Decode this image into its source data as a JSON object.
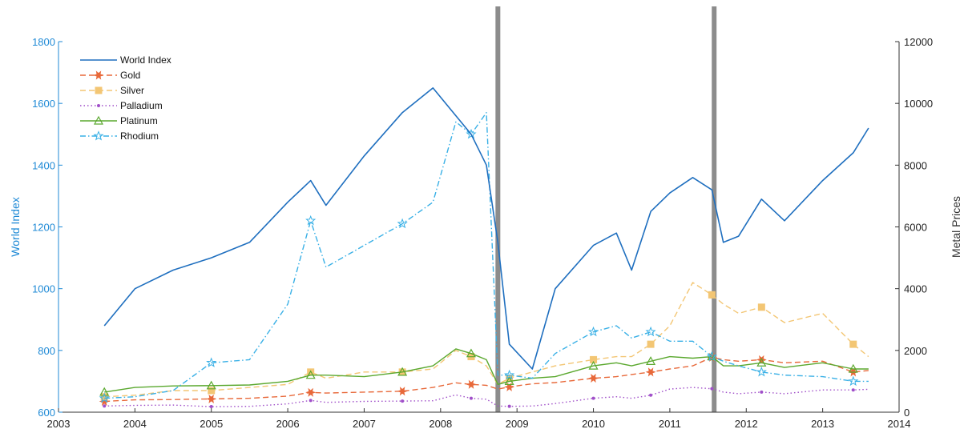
{
  "chart_data": {
    "type": "line",
    "title": "",
    "x": [
      2003.6,
      2004.0,
      2004.5,
      2005.0,
      2005.5,
      2006.0,
      2006.3,
      2006.5,
      2007.0,
      2007.5,
      2007.9,
      2008.2,
      2008.4,
      2008.6,
      2008.75,
      2008.9,
      2009.2,
      2009.5,
      2010.0,
      2010.3,
      2010.5,
      2010.75,
      2011.0,
      2011.3,
      2011.55,
      2011.7,
      2011.9,
      2012.2,
      2012.5,
      2013.0,
      2013.4,
      2013.6
    ],
    "xlim": [
      2003,
      2014
    ],
    "x_ticks": [
      "2003",
      "2004",
      "2005",
      "2006",
      "2007",
      "2008",
      "2009",
      "2010",
      "2011",
      "2012",
      "2013",
      "2014"
    ],
    "left_axis": {
      "label": "World Index",
      "ylim": [
        600,
        1800
      ],
      "ticks": [
        "600",
        "800",
        "1000",
        "1200",
        "1400",
        "1600",
        "1800"
      ],
      "color": "#1f8ad6"
    },
    "right_axis": {
      "label": "Metal Prices",
      "ylim": [
        0,
        12000
      ],
      "ticks": [
        "0",
        "2000",
        "4000",
        "6000",
        "8000",
        "10000",
        "12000"
      ],
      "color": "#333333"
    },
    "series": [
      {
        "name": "World Index",
        "axis": "left",
        "color": "#1f6fbf",
        "style": "solid",
        "marker": "none",
        "values": [
          880,
          1000,
          1060,
          1100,
          1150,
          1280,
          1350,
          1270,
          1430,
          1570,
          1650,
          1560,
          1500,
          1400,
          1150,
          820,
          740,
          1000,
          1140,
          1180,
          1060,
          1250,
          1310,
          1360,
          1320,
          1150,
          1170,
          1290,
          1220,
          1350,
          1440,
          1520
        ]
      },
      {
        "name": "Gold",
        "axis": "right",
        "color": "#e8693a",
        "style": "dashed",
        "marker": "star",
        "values": [
          350,
          400,
          410,
          430,
          450,
          520,
          640,
          620,
          650,
          680,
          800,
          950,
          900,
          870,
          750,
          820,
          920,
          960,
          1100,
          1150,
          1220,
          1300,
          1400,
          1500,
          1780,
          1700,
          1650,
          1700,
          1600,
          1650,
          1300,
          1350
        ]
      },
      {
        "name": "Silver",
        "axis": "right",
        "color": "#f3c674",
        "style": "dashed",
        "marker": "square",
        "values": [
          500,
          550,
          700,
          700,
          800,
          900,
          1300,
          1100,
          1300,
          1300,
          1400,
          2000,
          1800,
          1500,
          900,
          1100,
          1300,
          1500,
          1700,
          1800,
          1800,
          2200,
          2800,
          4200,
          3800,
          3500,
          3200,
          3400,
          2900,
          3200,
          2200,
          1800
        ]
      },
      {
        "name": "Palladium",
        "axis": "right",
        "color": "#a04fc9",
        "style": "dotted",
        "marker": "dot",
        "values": [
          200,
          220,
          230,
          180,
          190,
          270,
          380,
          320,
          350,
          360,
          370,
          560,
          450,
          420,
          200,
          190,
          200,
          280,
          450,
          500,
          450,
          550,
          750,
          800,
          760,
          650,
          600,
          650,
          600,
          720,
          720,
          740
        ]
      },
      {
        "name": "Platinum",
        "axis": "right",
        "color": "#5aa82e",
        "style": "solid",
        "marker": "triangle",
        "values": [
          650,
          800,
          850,
          860,
          880,
          1000,
          1200,
          1200,
          1150,
          1300,
          1500,
          2050,
          1900,
          1700,
          900,
          1000,
          1100,
          1150,
          1500,
          1600,
          1500,
          1650,
          1800,
          1750,
          1800,
          1500,
          1500,
          1600,
          1450,
          1600,
          1400,
          1400
        ]
      },
      {
        "name": "Rhodium",
        "axis": "right",
        "color": "#39b0e6",
        "style": "dashdot",
        "marker": "pentagram",
        "values": [
          450,
          500,
          700,
          1600,
          1700,
          3500,
          6200,
          4700,
          5400,
          6100,
          6800,
          9400,
          9000,
          9700,
          1200,
          1200,
          1100,
          1900,
          2600,
          2800,
          2400,
          2600,
          2300,
          2300,
          1800,
          1650,
          1500,
          1300,
          1200,
          1150,
          1000,
          1000
        ]
      }
    ],
    "vertical_markers": [
      2008.75,
      2011.58
    ],
    "legend_position": "top-left",
    "grid": false
  }
}
